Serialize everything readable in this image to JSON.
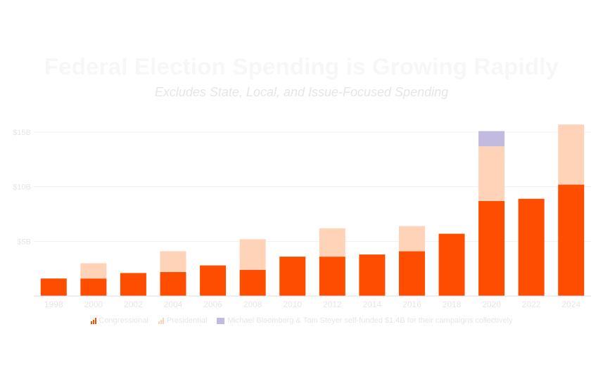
{
  "chart_data": {
    "type": "bar",
    "stacked": true,
    "title": "Federal Election Spending is Growing Rapidly",
    "subtitle": "Excludes State, Local, and Issue-Focused Spending",
    "categories": [
      "1998",
      "2000",
      "2002",
      "2004",
      "2006",
      "2008",
      "2010",
      "2012",
      "2014",
      "2016",
      "2018",
      "2020",
      "2022",
      "2024"
    ],
    "ylim": [
      0,
      15
    ],
    "yticks": [
      0,
      5,
      10,
      15
    ],
    "ytick_labels": [
      "",
      "$5B",
      "$10B",
      "$15B"
    ],
    "grid": true,
    "legend_position": "bottom",
    "series": [
      {
        "name": "Congressional",
        "color": "#ff4d00",
        "values": [
          1.6,
          1.6,
          2.1,
          2.2,
          2.8,
          2.4,
          3.6,
          3.6,
          3.8,
          4.1,
          5.7,
          8.7,
          8.9,
          10.2
        ]
      },
      {
        "name": "Presidential",
        "color": "#ffd3b8",
        "values": [
          0,
          1.4,
          0,
          1.9,
          0,
          2.8,
          0,
          2.6,
          0,
          2.3,
          0,
          5.0,
          0,
          5.5
        ]
      },
      {
        "name": "Michael Bloomberg & Tom Steyer self-funded $1.4B for their campaigns collectively",
        "color": "#c3badf",
        "values": [
          0,
          0,
          0,
          0,
          0,
          0,
          0,
          0,
          0,
          0,
          0,
          1.4,
          0,
          0
        ]
      }
    ]
  }
}
